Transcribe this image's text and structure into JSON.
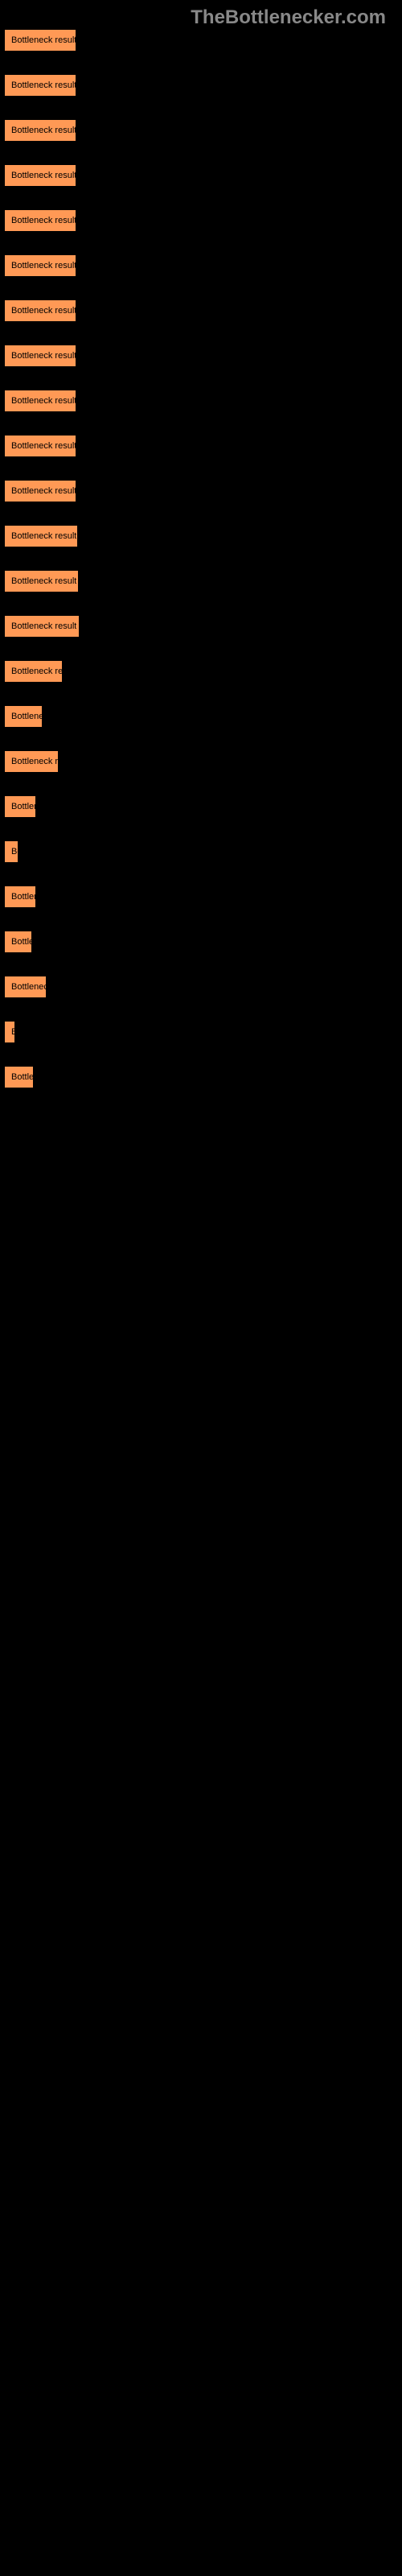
{
  "header": "TheBottlenecker.com",
  "chart": {
    "type": "bar",
    "bar_color": "#ff9955",
    "background_color": "#000000",
    "text_color": "#000000",
    "header_color": "#888888",
    "bars": [
      {
        "label": "Bottleneck result",
        "width": 90
      },
      {
        "label": "Bottleneck result",
        "width": 90
      },
      {
        "label": "Bottleneck result",
        "width": 90
      },
      {
        "label": "Bottleneck result",
        "width": 90
      },
      {
        "label": "Bottleneck result",
        "width": 90
      },
      {
        "label": "Bottleneck result",
        "width": 90
      },
      {
        "label": "Bottleneck result",
        "width": 90
      },
      {
        "label": "Bottleneck result",
        "width": 90
      },
      {
        "label": "Bottleneck result",
        "width": 90
      },
      {
        "label": "Bottleneck result",
        "width": 90
      },
      {
        "label": "Bottleneck result",
        "width": 90
      },
      {
        "label": "Bottleneck result",
        "width": 92
      },
      {
        "label": "Bottleneck result",
        "width": 93
      },
      {
        "label": "Bottleneck result",
        "width": 94
      },
      {
        "label": "Bottleneck re",
        "width": 73
      },
      {
        "label": "Bottlene",
        "width": 48
      },
      {
        "label": "Bottleneck r",
        "width": 68
      },
      {
        "label": "Bottlen",
        "width": 40
      },
      {
        "label": "Bo",
        "width": 18
      },
      {
        "label": "Bottlen",
        "width": 40
      },
      {
        "label": "Bottle",
        "width": 35
      },
      {
        "label": "Bottlenec",
        "width": 53
      },
      {
        "label": "Bo",
        "width": 14
      },
      {
        "label": "Bottle",
        "width": 37
      }
    ]
  }
}
